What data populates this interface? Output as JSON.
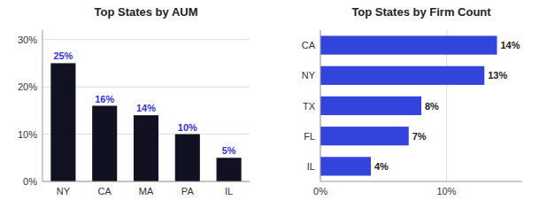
{
  "chart_data": [
    {
      "type": "bar",
      "title": "Top States by AUM",
      "categories": [
        "NY",
        "CA",
        "MA",
        "PA",
        "IL"
      ],
      "values": [
        25,
        16,
        14,
        10,
        5
      ],
      "value_labels": [
        "25%",
        "16%",
        "14%",
        "10%",
        "5%"
      ],
      "data_labels": true,
      "color": "#111122",
      "ylim": [
        0,
        32
      ],
      "yticks": [
        {
          "value": 0,
          "label": "0%"
        },
        {
          "value": 10,
          "label": "10%"
        },
        {
          "value": 20,
          "label": "20%"
        },
        {
          "value": 30,
          "label": "30%"
        }
      ],
      "grid": true
    },
    {
      "type": "bar",
      "orientation": "horizontal",
      "title": "Top States by Firm Count",
      "categories": [
        "CA",
        "NY",
        "TX",
        "FL",
        "IL"
      ],
      "values": [
        14,
        13,
        8,
        7,
        4
      ],
      "value_labels": [
        "14%",
        "13%",
        "8%",
        "7%",
        "4%"
      ],
      "data_labels": true,
      "color": "#3344dd",
      "xlim": [
        0,
        16
      ],
      "xticks": [
        {
          "value": 0,
          "label": "0%"
        },
        {
          "value": 10,
          "label": "10%"
        }
      ],
      "grid": true
    }
  ]
}
